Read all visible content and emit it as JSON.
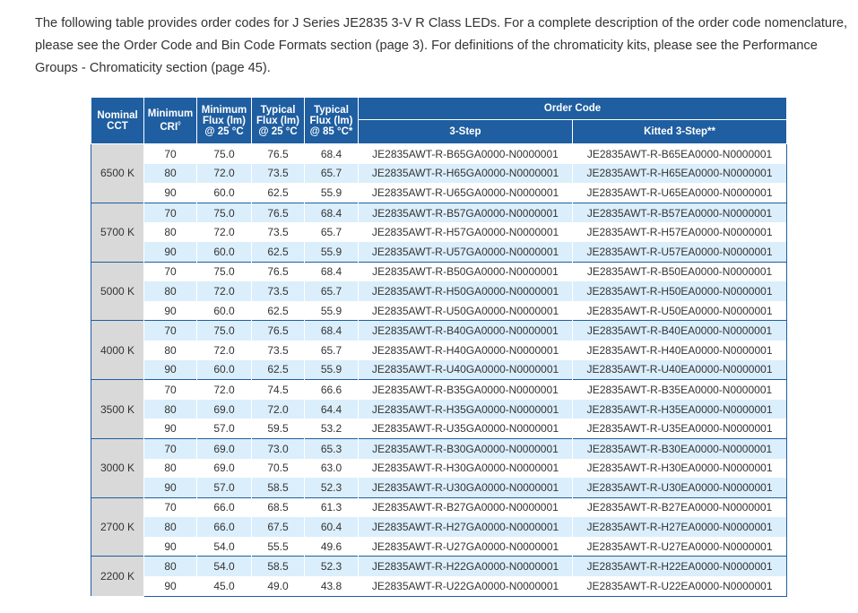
{
  "intro": "The following table provides order codes for J Series JE2835 3-V R Class LEDs. For a complete description of the order code nomenclature, please see the Order Code and Bin Code Formats section (page 3). For definitions of the chromaticity kits, please see the Performance Groups - Chromaticity section (page 45).",
  "headers": {
    "nominal_cct": "Nominal CCT",
    "min_cri": "Minimum CRI",
    "min_cri_sup": "◊",
    "min_flux": "Minimum Flux (lm) @ 25 °C",
    "typ_flux_25": "Typical Flux (lm) @ 25 °C",
    "typ_flux_85": "Typical Flux (lm) @ 85 °C*",
    "order_code": "Order Code",
    "three_step": "3-Step",
    "kitted": "Kitted 3-Step**"
  },
  "groups": [
    {
      "cct": "6500 K",
      "rows": [
        [
          "70",
          "75.0",
          "76.5",
          "68.4",
          "JE2835AWT-R-B65GA0000-N0000001",
          "JE2835AWT-R-B65EA0000-N0000001"
        ],
        [
          "80",
          "72.0",
          "73.5",
          "65.7",
          "JE2835AWT-R-H65GA0000-N0000001",
          "JE2835AWT-R-H65EA0000-N0000001"
        ],
        [
          "90",
          "60.0",
          "62.5",
          "55.9",
          "JE2835AWT-R-U65GA0000-N0000001",
          "JE2835AWT-R-U65EA0000-N0000001"
        ]
      ]
    },
    {
      "cct": "5700 K",
      "rows": [
        [
          "70",
          "75.0",
          "76.5",
          "68.4",
          "JE2835AWT-R-B57GA0000-N0000001",
          "JE2835AWT-R-B57EA0000-N0000001"
        ],
        [
          "80",
          "72.0",
          "73.5",
          "65.7",
          "JE2835AWT-R-H57GA0000-N0000001",
          "JE2835AWT-R-H57EA0000-N0000001"
        ],
        [
          "90",
          "60.0",
          "62.5",
          "55.9",
          "JE2835AWT-R-U57GA0000-N0000001",
          "JE2835AWT-R-U57EA0000-N0000001"
        ]
      ]
    },
    {
      "cct": "5000 K",
      "rows": [
        [
          "70",
          "75.0",
          "76.5",
          "68.4",
          "JE2835AWT-R-B50GA0000-N0000001",
          "JE2835AWT-R-B50EA0000-N0000001"
        ],
        [
          "80",
          "72.0",
          "73.5",
          "65.7",
          "JE2835AWT-R-H50GA0000-N0000001",
          "JE2835AWT-R-H50EA0000-N0000001"
        ],
        [
          "90",
          "60.0",
          "62.5",
          "55.9",
          "JE2835AWT-R-U50GA0000-N0000001",
          "JE2835AWT-R-U50EA0000-N0000001"
        ]
      ]
    },
    {
      "cct": "4000 K",
      "rows": [
        [
          "70",
          "75.0",
          "76.5",
          "68.4",
          "JE2835AWT-R-B40GA0000-N0000001",
          "JE2835AWT-R-B40EA0000-N0000001"
        ],
        [
          "80",
          "72.0",
          "73.5",
          "65.7",
          "JE2835AWT-R-H40GA0000-N0000001",
          "JE2835AWT-R-H40EA0000-N0000001"
        ],
        [
          "90",
          "60.0",
          "62.5",
          "55.9",
          "JE2835AWT-R-U40GA0000-N0000001",
          "JE2835AWT-R-U40EA0000-N0000001"
        ]
      ]
    },
    {
      "cct": "3500 K",
      "rows": [
        [
          "70",
          "72.0",
          "74.5",
          "66.6",
          "JE2835AWT-R-B35GA0000-N0000001",
          "JE2835AWT-R-B35EA0000-N0000001"
        ],
        [
          "80",
          "69.0",
          "72.0",
          "64.4",
          "JE2835AWT-R-H35GA0000-N0000001",
          "JE2835AWT-R-H35EA0000-N0000001"
        ],
        [
          "90",
          "57.0",
          "59.5",
          "53.2",
          "JE2835AWT-R-U35GA0000-N0000001",
          "JE2835AWT-R-U35EA0000-N0000001"
        ]
      ]
    },
    {
      "cct": "3000 K",
      "rows": [
        [
          "70",
          "69.0",
          "73.0",
          "65.3",
          "JE2835AWT-R-B30GA0000-N0000001",
          "JE2835AWT-R-B30EA0000-N0000001"
        ],
        [
          "80",
          "69.0",
          "70.5",
          "63.0",
          "JE2835AWT-R-H30GA0000-N0000001",
          "JE2835AWT-R-H30EA0000-N0000001"
        ],
        [
          "90",
          "57.0",
          "58.5",
          "52.3",
          "JE2835AWT-R-U30GA0000-N0000001",
          "JE2835AWT-R-U30EA0000-N0000001"
        ]
      ]
    },
    {
      "cct": "2700 K",
      "rows": [
        [
          "70",
          "66.0",
          "68.5",
          "61.3",
          "JE2835AWT-R-B27GA0000-N0000001",
          "JE2835AWT-R-B27EA0000-N0000001"
        ],
        [
          "80",
          "66.0",
          "67.5",
          "60.4",
          "JE2835AWT-R-H27GA0000-N0000001",
          "JE2835AWT-R-H27EA0000-N0000001"
        ],
        [
          "90",
          "54.0",
          "55.5",
          "49.6",
          "JE2835AWT-R-U27GA0000-N0000001",
          "JE2835AWT-R-U27EA0000-N0000001"
        ]
      ]
    },
    {
      "cct": "2200 K",
      "rows": [
        [
          "80",
          "54.0",
          "58.5",
          "52.3",
          "JE2835AWT-R-H22GA0000-N0000001",
          "JE2835AWT-R-H22EA0000-N0000001"
        ],
        [
          "90",
          "45.0",
          "49.0",
          "43.8",
          "JE2835AWT-R-U22GA0000-N0000001",
          "JE2835AWT-R-U22EA0000-N0000001"
        ]
      ]
    }
  ],
  "colors": {
    "header": "#1f5ea0",
    "row_alt": "#dbeefb",
    "cct_cell": "#d9d9d9"
  }
}
